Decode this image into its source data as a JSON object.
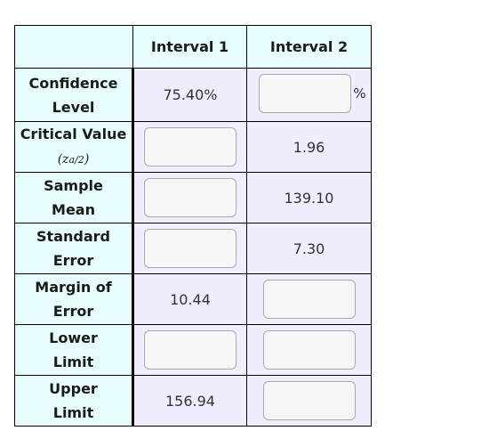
{
  "header": {
    "interval1": "Interval 1",
    "interval2": "Interval 2"
  },
  "rows": [
    {
      "label_line1": "Confidence",
      "label_line2": "Level",
      "interval1": "75.40%",
      "interval2_unit": "%"
    },
    {
      "label_line1": "Critical Value",
      "label_line2": "(z",
      "label_sub": "a/2",
      "label_close": ")",
      "interval2": "1.96"
    },
    {
      "label_line1": "Sample",
      "label_line2": "Mean",
      "interval2": "139.10"
    },
    {
      "label_line1": "Standard",
      "label_line2": "Error",
      "interval2": "7.30"
    },
    {
      "label_line1": "Margin of",
      "label_line2": "Error",
      "interval1": "10.44"
    },
    {
      "label_line1": "Lower",
      "label_line2": "Limit"
    },
    {
      "label_line1": "Upper",
      "label_line2": "Limit",
      "interval1": "156.94"
    }
  ]
}
